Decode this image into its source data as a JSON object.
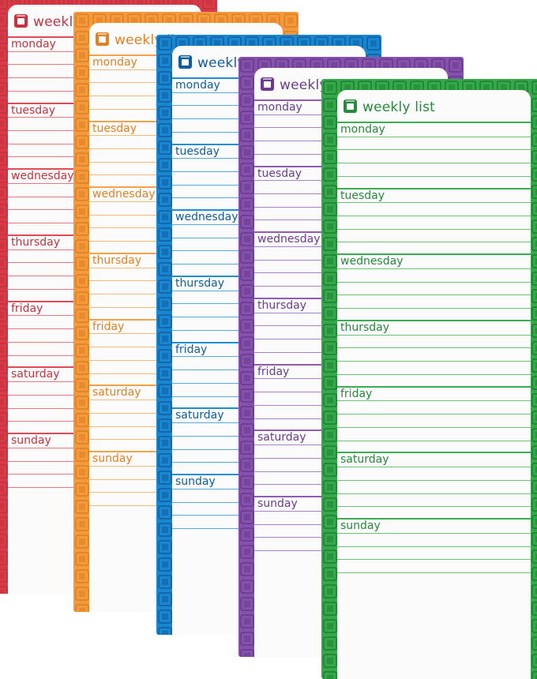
{
  "planner": {
    "title": "weekly list",
    "days": [
      "monday",
      "tuesday",
      "wednesday",
      "thursday",
      "friday",
      "saturday",
      "sunday"
    ]
  },
  "pads": [
    {
      "color_name": "red",
      "accent": "#e04a55",
      "border": "#d83b47",
      "tile": "#c4303c",
      "text": "#c8323f"
    },
    {
      "color_name": "orange",
      "accent": "#f4a24a",
      "border": "#f39a3e",
      "tile": "#e07f1f",
      "text": "#e28024"
    },
    {
      "color_name": "blue",
      "accent": "#1b8fd6",
      "border": "#1a86cf",
      "tile": "#0f5fa2",
      "text": "#0f5d9e"
    },
    {
      "color_name": "purple",
      "accent": "#8f5bb5",
      "border": "#8651ad",
      "tile": "#673a8c",
      "text": "#6b3b91"
    },
    {
      "color_name": "green",
      "accent": "#3aad4f",
      "border": "#35a84a",
      "tile": "#1d7f32",
      "text": "#268a3a"
    }
  ]
}
